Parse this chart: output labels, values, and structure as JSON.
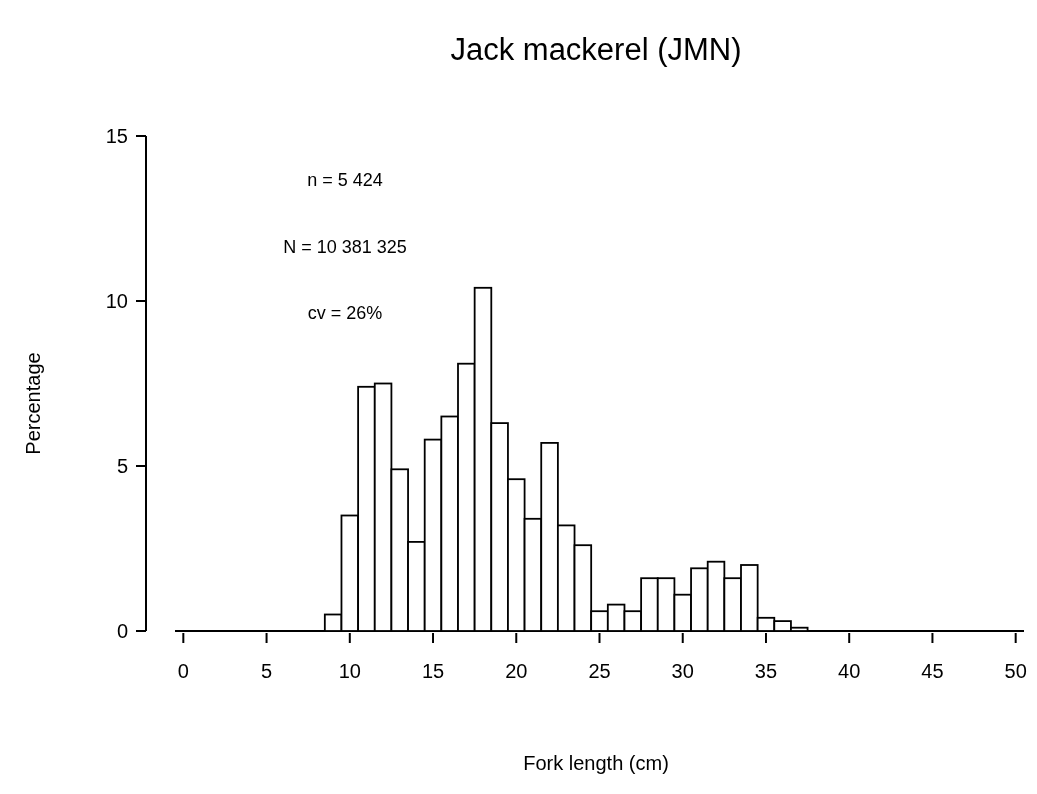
{
  "chart_data": {
    "type": "histogram",
    "title": "Jack mackerel (JMN)",
    "xlabel": "Fork length (cm)",
    "ylabel": "Percentage",
    "annotations": [
      "n = 5 424",
      "N = 10 381 325",
      "cv = 26%"
    ],
    "bins": [
      -0.5,
      0.5,
      1.5,
      2.5,
      3.5,
      4.5,
      5.5,
      6.5,
      7.5,
      8.5,
      9.5,
      10.5,
      11.5,
      12.5,
      13.5,
      14.5,
      15.5,
      16.5,
      17.5,
      18.5,
      19.5,
      20.5,
      21.5,
      22.5,
      23.5,
      24.5,
      25.5,
      26.5,
      27.5,
      28.5,
      29.5,
      30.5,
      31.5,
      32.5,
      33.5,
      34.5,
      35.5,
      36.5,
      37.5,
      38.5,
      39.5,
      40.5,
      41.5,
      42.5,
      43.5,
      44.5,
      45.5,
      46.5,
      47.5,
      48.5,
      49.5,
      50.5
    ],
    "values": [
      0,
      0,
      0,
      0,
      0,
      0,
      0,
      0,
      0,
      0.5,
      3.5,
      7.4,
      7.5,
      4.9,
      2.7,
      5.8,
      6.5,
      8.1,
      10.4,
      6.3,
      4.6,
      3.4,
      5.7,
      3.2,
      2.6,
      0.6,
      0.8,
      0.6,
      1.6,
      1.6,
      1.1,
      1.9,
      2.1,
      1.6,
      2.0,
      0.4,
      0.3,
      0.1,
      0,
      0,
      0,
      0,
      0,
      0,
      0,
      0,
      0,
      0,
      0,
      0,
      0
    ],
    "color": "#ffffff",
    "xlim": [
      -0.5,
      50.5
    ],
    "xticks": [
      0,
      5,
      10,
      15,
      20,
      25,
      30,
      35,
      40,
      45,
      50
    ],
    "ylim": [
      0,
      15
    ],
    "yticks": [
      0,
      5,
      10,
      15
    ],
    "grid": false
  }
}
